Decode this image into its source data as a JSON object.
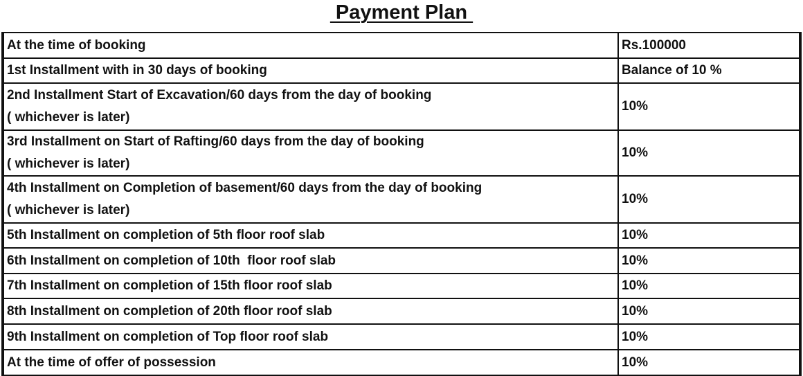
{
  "title": " Payment Plan ",
  "rows": [
    {
      "stage": "At the time of booking",
      "amount": "Rs.100000"
    },
    {
      "stage": "1st Installment with in 30 days of booking",
      "amount": "Balance of 10 %"
    },
    {
      "stage": "2nd Installment Start of Excavation/60 days from the day of booking\n( whichever is later)",
      "amount": "10%"
    },
    {
      "stage": "3rd Installment on Start of Rafting/60 days from the day of booking\n( whichever is later)",
      "amount": "10%"
    },
    {
      "stage": "4th Installment on Completion of basement/60 days from the day of booking\n( whichever is later)",
      "amount": "10%"
    },
    {
      "stage": "5th Installment on completion of 5th floor roof slab",
      "amount": "10%"
    },
    {
      "stage": "6th Installment on completion of 10th  floor roof slab",
      "amount": "10%"
    },
    {
      "stage": "7th Installment on completion of 15th floor roof slab",
      "amount": "10%"
    },
    {
      "stage": "8th Installment on completion of 20th floor roof slab",
      "amount": "10%"
    },
    {
      "stage": "9th Installment on completion of Top floor roof slab",
      "amount": "10%"
    },
    {
      "stage": "At the time of offer of possession",
      "amount": "10%"
    }
  ]
}
